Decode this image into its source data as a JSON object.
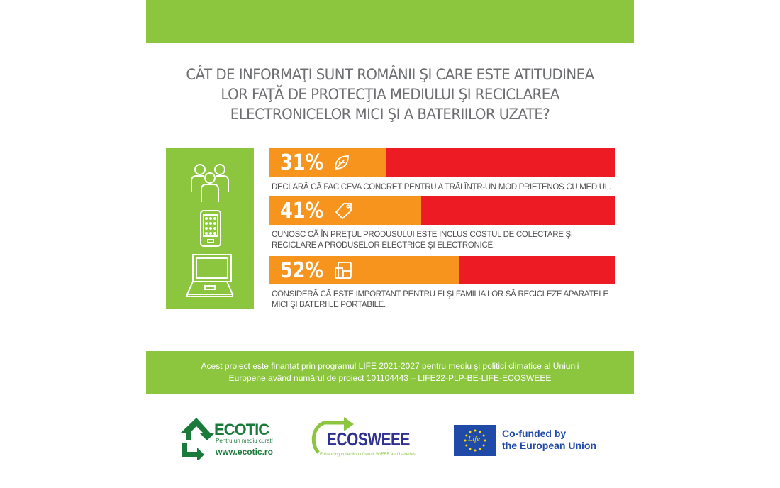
{
  "title": "CÂT DE INFORMAŢI SUNT ROMÂNII ŞI CARE ESTE ATITUDINEA LOR FAŢĂ DE PROTECŢIA MEDIULUI ŞI RECICLAREA ELECTRONICELOR MICI ŞI A BATERIILOR UZATE?",
  "title_lines": [
    "CÂT DE INFORMAŢI SUNT ROMÂNII ŞI CARE ESTE ATITUDINEA",
    "LOR FAŢĂ DE PROTECŢIA MEDIULUI ŞI RECICLAREA",
    "ELECTRONICELOR MICI ŞI A BATERIILOR UZATE?"
  ],
  "stats": [
    {
      "label": "31%",
      "value": 31,
      "icon": "leaf-icon",
      "desc": "DECLARĂ CĂ FAC CEVA CONCRET PENTRU A TRĂI ÎNTR-UN MOD PRIETENOS CU MEDIUL."
    },
    {
      "label": "41%",
      "value": 41,
      "icon": "price-tag-icon",
      "desc": "CUNOSC CĂ ÎN PREŢUL PRODUSULUI ESTE INCLUS COSTUL DE COLECTARE ŞI RECICLARE A PRODUSELOR ELECTRICE ŞI ELECTRONICE."
    },
    {
      "label": "52%",
      "value": 52,
      "icon": "devices-icon",
      "desc": "CONSIDERĂ CĂ ESTE IMPORTANT PENTRU EI ŞI FAMILIA LOR SĂ RECICLEZE APARATELE MICI ŞI BATERIILE PORTABILE."
    }
  ],
  "funding_lines": [
    "Acest proiect este finanţat prin programul LIFE 2021-2027 pentru mediu şi politici climatice al Uniunii",
    "Europene având numărul de proiect 101104443 – LIFE22-PLP-BE-LIFE-ECOSWEEE"
  ],
  "logos": {
    "ecotic": {
      "name": "ECOTIC",
      "tagline": "Pentru un mediu curat!",
      "url": "www.ecotic.ro"
    },
    "ecosweee": {
      "name": "ECOSWEEE",
      "tagline": "Enhancing collection of small W/EEE and batteries"
    },
    "eu": {
      "line1": "Co-funded by",
      "line2": "the European Union",
      "flag_text": "Life"
    }
  },
  "colors": {
    "green": "#8cc63f",
    "orange": "#f7941d",
    "red": "#ed1c24",
    "grey": "#6d6e71"
  }
}
